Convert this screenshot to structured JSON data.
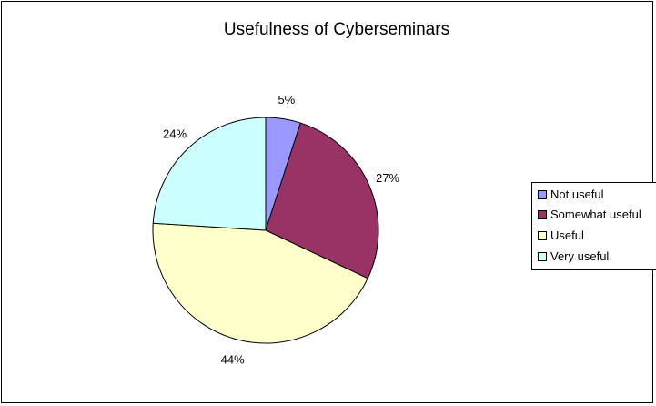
{
  "chart_data": {
    "type": "pie",
    "title": "Usefulness of Cyberseminars",
    "categories": [
      "Not useful",
      "Somewhat useful",
      "Useful",
      "Very useful"
    ],
    "values": [
      5,
      27,
      44,
      24
    ],
    "labels": [
      "5%",
      "27%",
      "44%",
      "24%"
    ],
    "colors": [
      "#9999FF",
      "#993366",
      "#FFFFCC",
      "#CCFFFF"
    ],
    "legend_position": "right"
  }
}
